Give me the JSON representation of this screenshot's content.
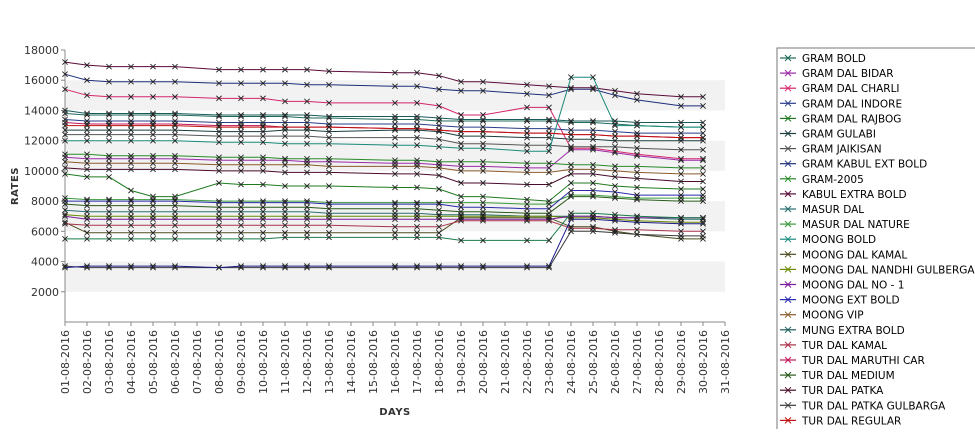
{
  "chart_data": {
    "type": "line",
    "title": "",
    "xlabel": "DAYS",
    "ylabel": "RATES",
    "ylim": [
      0,
      18000
    ],
    "yticks": [
      2000,
      4000,
      6000,
      8000,
      10000,
      12000,
      14000,
      16000,
      18000
    ],
    "categories": [
      "01-08-2016",
      "02-08-2016",
      "03-08-2016",
      "04-08-2016",
      "05-08-2016",
      "06-08-2016",
      "07-08-2016",
      "08-08-2016",
      "09-08-2016",
      "10-08-2016",
      "11-08-2016",
      "12-08-2016",
      "13-08-2016",
      "14-08-2016",
      "15-08-2016",
      "16-08-2016",
      "17-08-2016",
      "18-08-2016",
      "19-08-2016",
      "20-08-2016",
      "21-08-2016",
      "22-08-2016",
      "23-08-2016",
      "24-08-2016",
      "25-08-2016",
      "26-08-2016",
      "27-08-2016",
      "28-08-2016",
      "29-08-2016",
      "30-08-2016",
      "31-08-2016"
    ],
    "grid": "alternating horizontal bands",
    "legend_position": "right",
    "series": [
      {
        "name": "GRAM BOLD",
        "color": "#1f6b5a",
        "values": [
          13800,
          13700,
          13700,
          13700,
          13700,
          13700,
          null,
          13600,
          13600,
          13600,
          13600,
          13500,
          13500,
          null,
          null,
          13400,
          13400,
          13300,
          13300,
          13300,
          null,
          13300,
          13300,
          13200,
          13200,
          13100,
          13000,
          null,
          12900,
          12900,
          null
        ]
      },
      {
        "name": "GRAM DAL BIDAR",
        "color": "#9b2aa8",
        "values": [
          10900,
          10800,
          10800,
          10800,
          10800,
          10800,
          null,
          10700,
          10700,
          10700,
          10700,
          10600,
          10600,
          null,
          null,
          10500,
          10500,
          10400,
          10300,
          10300,
          null,
          10200,
          10200,
          11400,
          11400,
          11200,
          11000,
          null,
          10700,
          10700,
          null
        ]
      },
      {
        "name": "GRAM DAL CHARLI",
        "color": "#d4246a",
        "values": [
          15400,
          15000,
          14900,
          14900,
          14900,
          14900,
          null,
          14800,
          14800,
          14800,
          14600,
          14600,
          14500,
          null,
          null,
          14500,
          14500,
          14300,
          13700,
          13700,
          null,
          14200,
          14200,
          11500,
          11500,
          11300,
          11100,
          null,
          10800,
          10800,
          null
        ]
      },
      {
        "name": "GRAM DAL INDORE",
        "color": "#2a3d8a",
        "values": [
          13400,
          13300,
          13300,
          13300,
          13300,
          13300,
          null,
          13200,
          13200,
          13200,
          13200,
          13200,
          13100,
          null,
          null,
          13100,
          13100,
          13000,
          12900,
          12900,
          null,
          12800,
          12800,
          12700,
          12700,
          12600,
          12500,
          null,
          12500,
          12500,
          null
        ]
      },
      {
        "name": "GRAM DAL RAJBOG",
        "color": "#1f7a1f",
        "values": [
          9800,
          9600,
          9600,
          8700,
          8300,
          8300,
          null,
          9200,
          9100,
          9100,
          9000,
          9000,
          9000,
          null,
          null,
          8900,
          8900,
          8800,
          8300,
          8300,
          null,
          8100,
          8000,
          9200,
          9200,
          9000,
          8900,
          null,
          8800,
          8800,
          null
        ]
      },
      {
        "name": "GRAM GULABI",
        "color": "#1a3d3d",
        "values": [
          12700,
          12700,
          12700,
          12700,
          12700,
          12700,
          null,
          12600,
          12600,
          12600,
          12700,
          12700,
          12600,
          null,
          null,
          12700,
          12700,
          12600,
          12300,
          12300,
          null,
          12200,
          12200,
          12100,
          12100,
          12000,
          12000,
          null,
          12000,
          12000,
          null
        ]
      },
      {
        "name": "GRAM JAIKISAN",
        "color": "#555555",
        "values": [
          12400,
          12400,
          12400,
          12400,
          12400,
          12400,
          null,
          12300,
          12300,
          12300,
          12300,
          12300,
          12200,
          null,
          null,
          12200,
          12200,
          12100,
          11800,
          11800,
          null,
          11700,
          11700,
          11600,
          11600,
          11600,
          11500,
          null,
          11400,
          11400,
          null
        ]
      },
      {
        "name": "GRAM KABUL EXT BOLD",
        "color": "#1e2e7a",
        "values": [
          16400,
          16000,
          15900,
          15900,
          15900,
          15900,
          null,
          15800,
          15800,
          15800,
          15800,
          15700,
          15700,
          null,
          null,
          15600,
          15600,
          15400,
          15300,
          15300,
          null,
          15100,
          15000,
          15400,
          15400,
          15000,
          14700,
          null,
          14300,
          14300,
          null
        ]
      },
      {
        "name": "GRAM-2005",
        "color": "#2a8a2a",
        "values": [
          11100,
          11100,
          11000,
          11000,
          11000,
          11000,
          null,
          10900,
          10900,
          10900,
          10800,
          10800,
          10800,
          null,
          null,
          10700,
          10700,
          10600,
          10600,
          10600,
          null,
          10500,
          10500,
          10400,
          10400,
          10300,
          10300,
          null,
          10200,
          10200,
          null
        ]
      },
      {
        "name": "KABUL EXTRA BOLD",
        "color": "#5a0a3a",
        "values": [
          17200,
          17000,
          16900,
          16900,
          16900,
          16900,
          null,
          16700,
          16700,
          16700,
          16700,
          16700,
          16600,
          null,
          null,
          16500,
          16500,
          16300,
          15900,
          15900,
          null,
          15700,
          15600,
          15500,
          15500,
          15300,
          15100,
          null,
          14900,
          14900,
          null
        ]
      },
      {
        "name": "MASUR DAL",
        "color": "#2a6e6e",
        "values": [
          7400,
          7300,
          7300,
          7300,
          7300,
          7300,
          null,
          7300,
          7300,
          7300,
          7300,
          7300,
          7200,
          null,
          null,
          7200,
          7200,
          7100,
          7100,
          7100,
          null,
          7000,
          7000,
          7000,
          7000,
          6900,
          6900,
          null,
          6800,
          6800,
          null
        ]
      },
      {
        "name": "MASUR DAL NATURE",
        "color": "#3a9a3a",
        "values": [
          8200,
          8100,
          8100,
          8100,
          8100,
          8100,
          null,
          8000,
          8000,
          8000,
          8000,
          8000,
          7900,
          null,
          null,
          7900,
          7900,
          7900,
          7900,
          7900,
          null,
          7800,
          7800,
          8400,
          8400,
          8300,
          8200,
          null,
          8200,
          8200,
          null
        ]
      },
      {
        "name": "MOONG BOLD",
        "color": "#1a8a7a",
        "values": [
          12000,
          12000,
          12000,
          12000,
          12000,
          12000,
          null,
          11900,
          11900,
          11900,
          11800,
          11800,
          11800,
          null,
          null,
          11700,
          11700,
          11600,
          11500,
          11500,
          null,
          11300,
          11300,
          16200,
          16200,
          13000,
          13000,
          null,
          12900,
          12900,
          null
        ]
      },
      {
        "name": "MOONG DAL KAMAL",
        "color": "#4a4a1a",
        "values": [
          6600,
          5900,
          5900,
          5900,
          5900,
          5900,
          null,
          5900,
          5900,
          5900,
          5900,
          5900,
          5900,
          null,
          null,
          5900,
          5900,
          5900,
          6900,
          6900,
          null,
          6900,
          6900,
          6300,
          6300,
          6000,
          5800,
          null,
          5500,
          5500,
          null
        ]
      },
      {
        "name": "MOONG DAL NANDHI GULBERGA",
        "color": "#6a8a00",
        "values": [
          7100,
          7000,
          7000,
          7000,
          7000,
          7000,
          null,
          7000,
          7000,
          7000,
          7000,
          7000,
          7000,
          null,
          null,
          7000,
          7000,
          7000,
          7000,
          7000,
          null,
          7000,
          7000,
          6900,
          6900,
          6800,
          6700,
          null,
          6600,
          6600,
          null
        ]
      },
      {
        "name": "MOONG DAL NO - 1",
        "color": "#7a1a9a",
        "values": [
          7000,
          6800,
          6800,
          6800,
          6800,
          6800,
          null,
          6800,
          6800,
          6800,
          6800,
          6800,
          6800,
          null,
          null,
          6800,
          6800,
          6800,
          6800,
          6800,
          null,
          6800,
          6800,
          7000,
          7000,
          6900,
          6900,
          null,
          6900,
          6900,
          null
        ]
      },
      {
        "name": "MOONG EXT BOLD",
        "color": "#2a2aaa",
        "values": [
          8000,
          8000,
          8000,
          8000,
          8000,
          8000,
          null,
          7900,
          7900,
          7900,
          7900,
          7900,
          7800,
          null,
          null,
          7800,
          7800,
          7800,
          7600,
          7600,
          null,
          7500,
          7500,
          8700,
          8700,
          8600,
          8400,
          null,
          8400,
          8400,
          null
        ]
      },
      {
        "name": "MOONG VIP",
        "color": "#8a5a2a",
        "values": [
          10600,
          10500,
          10500,
          10500,
          10500,
          10500,
          null,
          10400,
          10400,
          10400,
          10400,
          10400,
          10300,
          null,
          null,
          10300,
          10300,
          10200,
          10000,
          10000,
          null,
          9900,
          9900,
          10100,
          10100,
          10000,
          9900,
          null,
          9800,
          9800,
          null
        ]
      },
      {
        "name": "MUNG EXTRA BOLD",
        "color": "#1a5a5a",
        "values": [
          14000,
          13800,
          13800,
          13800,
          13800,
          13800,
          null,
          13700,
          13700,
          13700,
          13700,
          13700,
          13600,
          null,
          null,
          13600,
          13600,
          13500,
          13400,
          13400,
          null,
          13400,
          13400,
          13300,
          13300,
          13300,
          13200,
          null,
          13200,
          13200,
          null
        ]
      },
      {
        "name": "TUR DAL KAMAL",
        "color": "#a8324a",
        "values": [
          6500,
          6400,
          6400,
          6400,
          6400,
          6400,
          null,
          6400,
          6400,
          6400,
          6400,
          6400,
          6400,
          null,
          null,
          6300,
          6300,
          6300,
          6700,
          6700,
          null,
          6700,
          6700,
          6200,
          6200,
          6100,
          6100,
          null,
          6000,
          6000,
          null
        ]
      },
      {
        "name": "TUR DAL MARUTHI CAR",
        "color": "#c0185a",
        "values": [
          13200,
          13100,
          13100,
          13100,
          13100,
          13100,
          null,
          13000,
          13000,
          13000,
          12900,
          12900,
          12900,
          null,
          null,
          12800,
          12800,
          12700,
          12600,
          12600,
          null,
          12500,
          12500,
          12400,
          12400,
          12300,
          12300,
          null,
          12200,
          12200,
          null
        ]
      },
      {
        "name": "TUR DAL MEDIUM",
        "color": "#2a5a1a",
        "values": [
          7800,
          7700,
          7700,
          7700,
          7700,
          7700,
          null,
          7600,
          7600,
          7600,
          7600,
          7600,
          7500,
          null,
          null,
          7500,
          7500,
          7400,
          7300,
          7300,
          null,
          7200,
          7200,
          8300,
          8300,
          8200,
          8100,
          null,
          8000,
          8000,
          null
        ]
      },
      {
        "name": "TUR DAL PATKA",
        "color": "#4a0a2a",
        "values": [
          10200,
          10100,
          10100,
          10100,
          10100,
          10100,
          null,
          10000,
          10000,
          10000,
          9900,
          9900,
          9900,
          null,
          null,
          9800,
          9800,
          9700,
          9200,
          9200,
          null,
          9100,
          9100,
          9800,
          9800,
          9600,
          9500,
          null,
          9300,
          9300,
          null
        ]
      },
      {
        "name": "TUR DAL PATKA GULBARGA",
        "color": "#3a3a3a",
        "values": [
          3700,
          3600,
          3600,
          3600,
          3600,
          3600,
          null,
          3600,
          3600,
          3600,
          3600,
          3600,
          3600,
          null,
          null,
          3600,
          3600,
          3600,
          3600,
          3600,
          null,
          3600,
          3600,
          6000,
          6000,
          5900,
          5800,
          null,
          5700,
          5700,
          null
        ]
      },
      {
        "name": "TUR DAL REGULAR",
        "color": "#c01010",
        "values": [
          13000,
          13000,
          13000,
          13000,
          13000,
          13000,
          null,
          12900,
          12900,
          12900,
          12900,
          12900,
          12900,
          null,
          null,
          12800,
          12800,
          12700,
          12600,
          12600,
          null,
          12500,
          12500,
          12400,
          12400,
          12300,
          12300,
          null,
          12200,
          12200,
          null
        ]
      },
      {
        "name": "",
        "color": "#1a1a8a",
        "values": [
          3600,
          3700,
          3700,
          3700,
          3700,
          3700,
          null,
          3600,
          3700,
          3700,
          3700,
          3700,
          3700,
          null,
          null,
          3700,
          3700,
          3700,
          3700,
          3700,
          null,
          3700,
          3700,
          6800,
          6800,
          6700,
          6600,
          null,
          6500,
          6500,
          null
        ]
      },
      {
        "name": "",
        "color": "#1a7a4a",
        "values": [
          5500,
          5500,
          5500,
          5500,
          5500,
          5500,
          null,
          5500,
          5500,
          5500,
          5600,
          5600,
          5600,
          null,
          null,
          5600,
          5600,
          5600,
          5400,
          5400,
          null,
          5400,
          5400,
          7200,
          7200,
          7100,
          7000,
          null,
          6900,
          6900,
          null
        ]
      }
    ]
  }
}
